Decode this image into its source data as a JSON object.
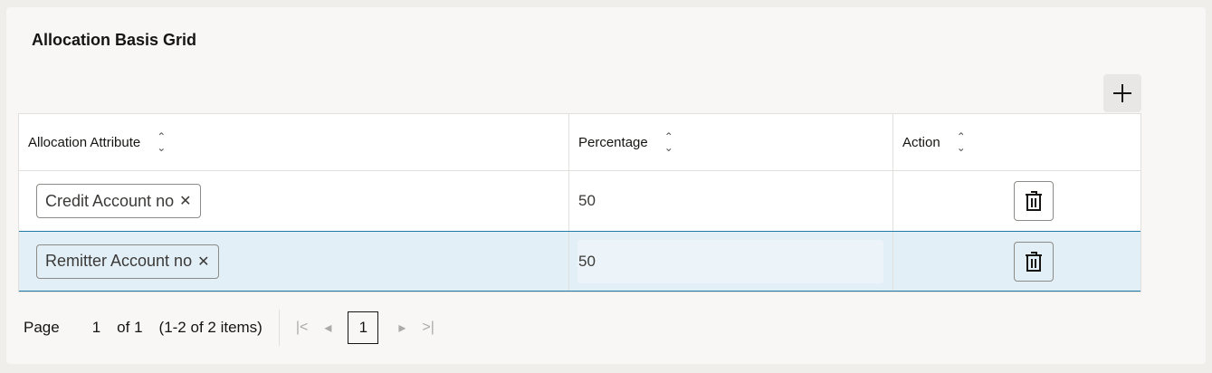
{
  "title": "Allocation Basis Grid",
  "add_icon": "plus-icon",
  "columns": [
    "Allocation Attribute",
    "Percentage",
    "Action"
  ],
  "rows": [
    {
      "attribute": "Credit Account no",
      "percentage": "50",
      "selected": false
    },
    {
      "attribute": "Remitter Account no",
      "percentage": "50",
      "selected": true
    }
  ],
  "pager": {
    "page_label": "Page",
    "page": "1",
    "of": "of 1",
    "range": "(1-2 of 2 items)",
    "current": "1"
  },
  "colors": {
    "selected_row": "#e3eff6",
    "selected_border": "#1f7aa8"
  }
}
